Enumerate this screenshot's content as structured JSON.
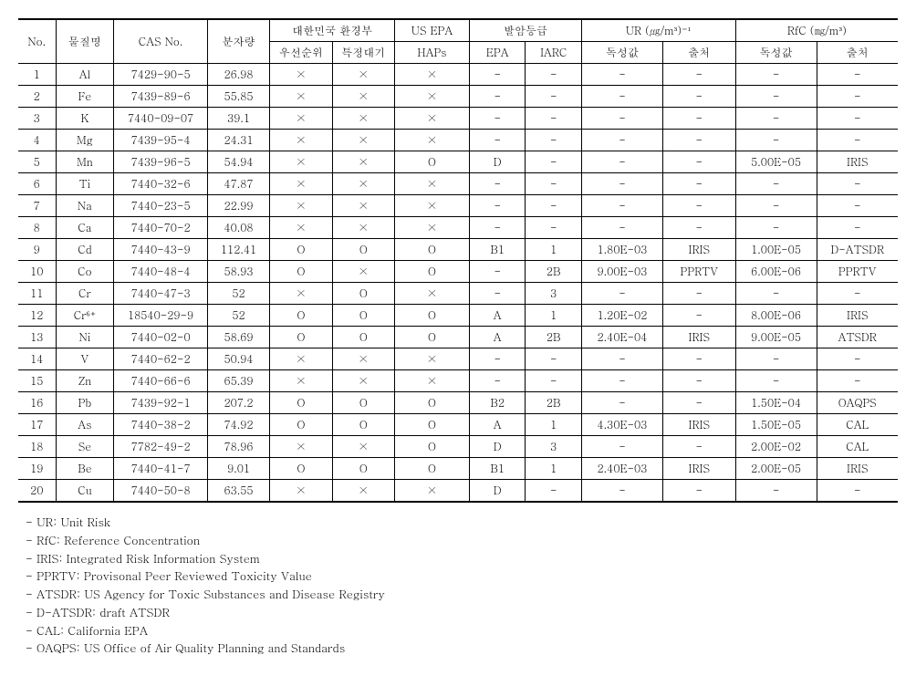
{
  "headers": {
    "no": "No.",
    "name": "물질명",
    "cas": "CAS No.",
    "mw": "분자량",
    "kor_env": "대한민국 환경부",
    "priority": "우선순위",
    "special": "특정대기",
    "us_epa": "US EPA",
    "haps": "HAPs",
    "carc": "발암등급",
    "epa": "EPA",
    "iarc": "IARC",
    "ur": "UR (㎍/m³)⁻¹",
    "ur_tox": "독성값",
    "ur_src": "출처",
    "rfc": "RfC (㎎/m³)",
    "rfc_tox": "독성값",
    "rfc_src": "출처"
  },
  "rows": [
    {
      "no": "1",
      "name": "Al",
      "cas": "7429-90-5",
      "mw": "26.98",
      "pri": "×",
      "sp": "×",
      "haps": "×",
      "epa": "-",
      "iarc": "-",
      "urtox": "-",
      "ursrc": "-",
      "rfctox": "-",
      "rfcsrc": "-"
    },
    {
      "no": "2",
      "name": "Fe",
      "cas": "7439-89-6",
      "mw": "55.85",
      "pri": "×",
      "sp": "×",
      "haps": "×",
      "epa": "-",
      "iarc": "-",
      "urtox": "-",
      "ursrc": "-",
      "rfctox": "-",
      "rfcsrc": "-"
    },
    {
      "no": "3",
      "name": "K",
      "cas": "7440-09-07",
      "mw": "39.1",
      "pri": "×",
      "sp": "×",
      "haps": "×",
      "epa": "-",
      "iarc": "-",
      "urtox": "-",
      "ursrc": "-",
      "rfctox": "-",
      "rfcsrc": "-"
    },
    {
      "no": "4",
      "name": "Mg",
      "cas": "7439-95-4",
      "mw": "24.31",
      "pri": "×",
      "sp": "×",
      "haps": "×",
      "epa": "-",
      "iarc": "-",
      "urtox": "-",
      "ursrc": "-",
      "rfctox": "-",
      "rfcsrc": "-"
    },
    {
      "no": "5",
      "name": "Mn",
      "cas": "7439-96-5",
      "mw": "54.94",
      "pri": "×",
      "sp": "×",
      "haps": "O",
      "epa": "D",
      "iarc": "-",
      "urtox": "-",
      "ursrc": "-",
      "rfctox": "5.00E-05",
      "rfcsrc": "IRIS"
    },
    {
      "no": "6",
      "name": "Ti",
      "cas": "7440-32-6",
      "mw": "47.87",
      "pri": "×",
      "sp": "×",
      "haps": "×",
      "epa": "-",
      "iarc": "-",
      "urtox": "-",
      "ursrc": "-",
      "rfctox": "-",
      "rfcsrc": "-"
    },
    {
      "no": "7",
      "name": "Na",
      "cas": "7440-23-5",
      "mw": "22.99",
      "pri": "×",
      "sp": "×",
      "haps": "×",
      "epa": "-",
      "iarc": "-",
      "urtox": "-",
      "ursrc": "-",
      "rfctox": "-",
      "rfcsrc": "-"
    },
    {
      "no": "8",
      "name": "Ca",
      "cas": "7440-70-2",
      "mw": "40.08",
      "pri": "×",
      "sp": "×",
      "haps": "×",
      "epa": "-",
      "iarc": "-",
      "urtox": "-",
      "ursrc": "-",
      "rfctox": "-",
      "rfcsrc": "-"
    },
    {
      "no": "9",
      "name": "Cd",
      "cas": "7440-43-9",
      "mw": "112.41",
      "pri": "O",
      "sp": "O",
      "haps": "O",
      "epa": "B1",
      "iarc": "1",
      "urtox": "1.80E-03",
      "ursrc": "IRIS",
      "rfctox": "1.00E-05",
      "rfcsrc": "D-ATSDR"
    },
    {
      "no": "10",
      "name": "Co",
      "cas": "7440-48-4",
      "mw": "58.93",
      "pri": "O",
      "sp": "×",
      "haps": "O",
      "epa": "-",
      "iarc": "2B",
      "urtox": "9.00E-03",
      "ursrc": "PPRTV",
      "rfctox": "6.00E-06",
      "rfcsrc": "PPRTV"
    },
    {
      "no": "11",
      "name": "Cr",
      "cas": "7440-47-3",
      "mw": "52",
      "pri": "×",
      "sp": "O",
      "haps": "×",
      "epa": "-",
      "iarc": "3",
      "urtox": "-",
      "ursrc": "-",
      "rfctox": "-",
      "rfcsrc": "-"
    },
    {
      "no": "12",
      "name": "Cr⁶⁺",
      "cas": "18540-29-9",
      "mw": "52",
      "pri": "O",
      "sp": "O",
      "haps": "O",
      "epa": "A",
      "iarc": "1",
      "urtox": "1.20E-02",
      "ursrc": "-",
      "rfctox": "8.00E-06",
      "rfcsrc": "IRIS"
    },
    {
      "no": "13",
      "name": "Ni",
      "cas": "7440-02-0",
      "mw": "58.69",
      "pri": "O",
      "sp": "O",
      "haps": "O",
      "epa": "A",
      "iarc": "2B",
      "urtox": "2.40E-04",
      "ursrc": "IRIS",
      "rfctox": "9.00E-05",
      "rfcsrc": "ATSDR"
    },
    {
      "no": "14",
      "name": "V",
      "cas": "7440-62-2",
      "mw": "50.94",
      "pri": "×",
      "sp": "×",
      "haps": "×",
      "epa": "-",
      "iarc": "-",
      "urtox": "-",
      "ursrc": "-",
      "rfctox": "-",
      "rfcsrc": "-"
    },
    {
      "no": "15",
      "name": "Zn",
      "cas": "7440-66-6",
      "mw": "65.39",
      "pri": "×",
      "sp": "×",
      "haps": "×",
      "epa": "-",
      "iarc": "-",
      "urtox": "-",
      "ursrc": "-",
      "rfctox": "-",
      "rfcsrc": "-"
    },
    {
      "no": "16",
      "name": "Pb",
      "cas": "7439-92-1",
      "mw": "207.2",
      "pri": "O",
      "sp": "O",
      "haps": "O",
      "epa": "B2",
      "iarc": "2B",
      "urtox": "-",
      "ursrc": "-",
      "rfctox": "1.50E-04",
      "rfcsrc": "OAQPS"
    },
    {
      "no": "17",
      "name": "As",
      "cas": "7440-38-2",
      "mw": "74.92",
      "pri": "O",
      "sp": "O",
      "haps": "O",
      "epa": "A",
      "iarc": "1",
      "urtox": "4.30E-03",
      "ursrc": "IRIS",
      "rfctox": "1.50E-05",
      "rfcsrc": "CAL"
    },
    {
      "no": "18",
      "name": "Se",
      "cas": "7782-49-2",
      "mw": "78.96",
      "pri": "×",
      "sp": "×",
      "haps": "O",
      "epa": "D",
      "iarc": "3",
      "urtox": "-",
      "ursrc": "-",
      "rfctox": "2.00E-02",
      "rfcsrc": "CAL"
    },
    {
      "no": "19",
      "name": "Be",
      "cas": "7440-41-7",
      "mw": "9.01",
      "pri": "O",
      "sp": "O",
      "haps": "O",
      "epa": "B1",
      "iarc": "1",
      "urtox": "2.40E-03",
      "ursrc": "IRIS",
      "rfctox": "2.00E-05",
      "rfcsrc": "IRIS"
    },
    {
      "no": "20",
      "name": "Cu",
      "cas": "7440-50-8",
      "mw": "63.55",
      "pri": "×",
      "sp": "×",
      "haps": "×",
      "epa": "D",
      "iarc": "-",
      "urtox": "-",
      "ursrc": "-",
      "rfctox": "-",
      "rfcsrc": "-"
    }
  ],
  "col_widths": {
    "no": 36,
    "name": 56,
    "cas": 90,
    "mw": 60,
    "pri": 60,
    "sp": 60,
    "haps": 72,
    "epa": 54,
    "iarc": 54,
    "urtox": 78,
    "ursrc": 70,
    "rfctox": 78,
    "rfcsrc": 78
  },
  "footnotes": [
    "- UR: Unit Risk",
    "- RfC: Reference Concentration",
    "- IRIS: Integrated Risk Information System",
    "- PPRTV: Provisonal Peer Reviewed Toxicity Value",
    "- ATSDR: US Agency for Toxic Substances and Disease Registry",
    "- D-ATSDR: draft ATSDR",
    "- CAL: California EPA",
    "- OAQPS: US Office of Air Quality Planning and Standards"
  ]
}
